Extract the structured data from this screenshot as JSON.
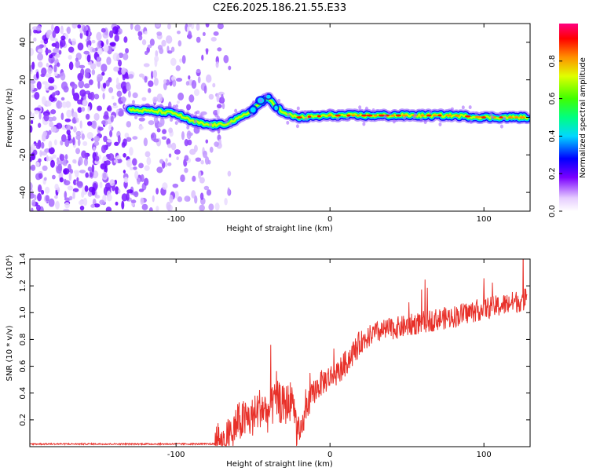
{
  "title": "C2E6.2025.186.21.55.E33",
  "chart_data": [
    {
      "type": "heatmap",
      "xlabel": "Height of straight line (km)",
      "ylabel": "Frequency (Hz)",
      "xlim": [
        -195,
        130
      ],
      "ylim": [
        -50,
        50
      ],
      "xticks": [
        -100,
        0,
        100
      ],
      "yticks": [
        -40,
        -20,
        0,
        20,
        40
      ],
      "colorbar": {
        "label": "Normalized spectral amplitude",
        "range": [
          0,
          1
        ],
        "ticks": [
          "0.0",
          "0.2",
          "0.4",
          "0.6",
          "0.8"
        ],
        "colormap": [
          "#ffffff",
          "#7a00ff",
          "#0000ff",
          "#00e0ff",
          "#00ff40",
          "#c0ff00",
          "#ffa000",
          "#ff0000",
          "#ff00a0"
        ]
      },
      "ridge": [
        {
          "x": -130,
          "y": 4
        },
        {
          "x": -110,
          "y": 3
        },
        {
          "x": -100,
          "y": 2
        },
        {
          "x": -90,
          "y": -2
        },
        {
          "x": -80,
          "y": -4
        },
        {
          "x": -70,
          "y": -4
        },
        {
          "x": -60,
          "y": -1
        },
        {
          "x": -50,
          "y": 4
        },
        {
          "x": -45,
          "y": 8
        },
        {
          "x": -40,
          "y": 10
        },
        {
          "x": -35,
          "y": 6
        },
        {
          "x": -30,
          "y": 2
        },
        {
          "x": -20,
          "y": 0
        },
        {
          "x": 0,
          "y": 1
        },
        {
          "x": 20,
          "y": 1
        },
        {
          "x": 50,
          "y": 1
        },
        {
          "x": 80,
          "y": 1
        },
        {
          "x": 100,
          "y": 0
        },
        {
          "x": 128,
          "y": 0
        }
      ]
    },
    {
      "type": "line",
      "xlabel": "Height of straight line (km)",
      "ylabel": "SNR (10 * v/v)",
      "y_multiplier": "(x10⁴)",
      "xlim": [
        -195,
        130
      ],
      "ylim": [
        0,
        1.4
      ],
      "xticks": [
        -100,
        0,
        100
      ],
      "yticks": [
        "0.2",
        "0.4",
        "0.6",
        "0.8",
        "1.0",
        "1.2",
        "1.4"
      ],
      "color": "#e8312a",
      "series": [
        {
          "x": [
            -195,
            -180,
            -160,
            -140,
            -120,
            -100,
            -85,
            -75,
            -70,
            -65,
            -60,
            -55,
            -50,
            -45,
            -40,
            -35,
            -30,
            -25,
            -20,
            -15,
            -10,
            -5,
            0,
            5,
            10,
            15,
            20,
            25,
            30,
            40,
            50,
            60,
            70,
            80,
            90,
            100,
            110,
            120,
            128
          ],
          "values": [
            0.02,
            0.02,
            0.02,
            0.02,
            0.02,
            0.02,
            0.02,
            0.02,
            0.03,
            0.08,
            0.18,
            0.2,
            0.22,
            0.3,
            0.25,
            0.35,
            0.3,
            0.35,
            0.05,
            0.3,
            0.42,
            0.48,
            0.52,
            0.55,
            0.62,
            0.7,
            0.78,
            0.82,
            0.85,
            0.88,
            0.9,
            0.93,
            0.95,
            0.97,
            1.0,
            1.03,
            1.05,
            1.08,
            1.1
          ]
        }
      ]
    }
  ]
}
